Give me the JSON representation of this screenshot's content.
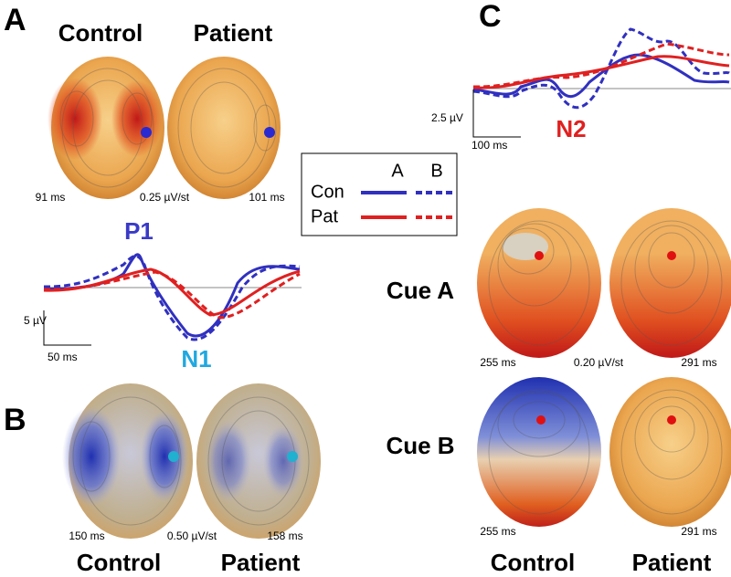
{
  "panel_a": {
    "label": "A",
    "heads": [
      "Control",
      "Patient"
    ],
    "latencies": [
      "91 ms",
      "101 ms"
    ],
    "scale": "0.25 µV/st",
    "waveform": {
      "peaks": [
        "P1",
        "N1"
      ],
      "y_scale": "5 µV",
      "x_scale": "50 ms"
    }
  },
  "legend": {
    "columns": [
      "A",
      "B"
    ],
    "rows": [
      "Con",
      "Pat"
    ]
  },
  "panel_b": {
    "label": "B",
    "heads": [
      "Control",
      "Patient"
    ],
    "latencies": [
      "150 ms",
      "158 ms"
    ],
    "scale": "0.50 µV/st"
  },
  "panel_c": {
    "label": "C",
    "waveform": {
      "peak": "N2",
      "y_scale": "2.5 µV",
      "x_scale": "100 ms"
    },
    "rows": [
      {
        "label": "Cue A",
        "latencies": [
          "255 ms",
          "291 ms"
        ],
        "scale": "0.20 µV/st"
      },
      {
        "label": "Cue B",
        "latencies": [
          "255 ms",
          "291 ms"
        ]
      }
    ],
    "heads": [
      "Control",
      "Patient"
    ]
  }
}
